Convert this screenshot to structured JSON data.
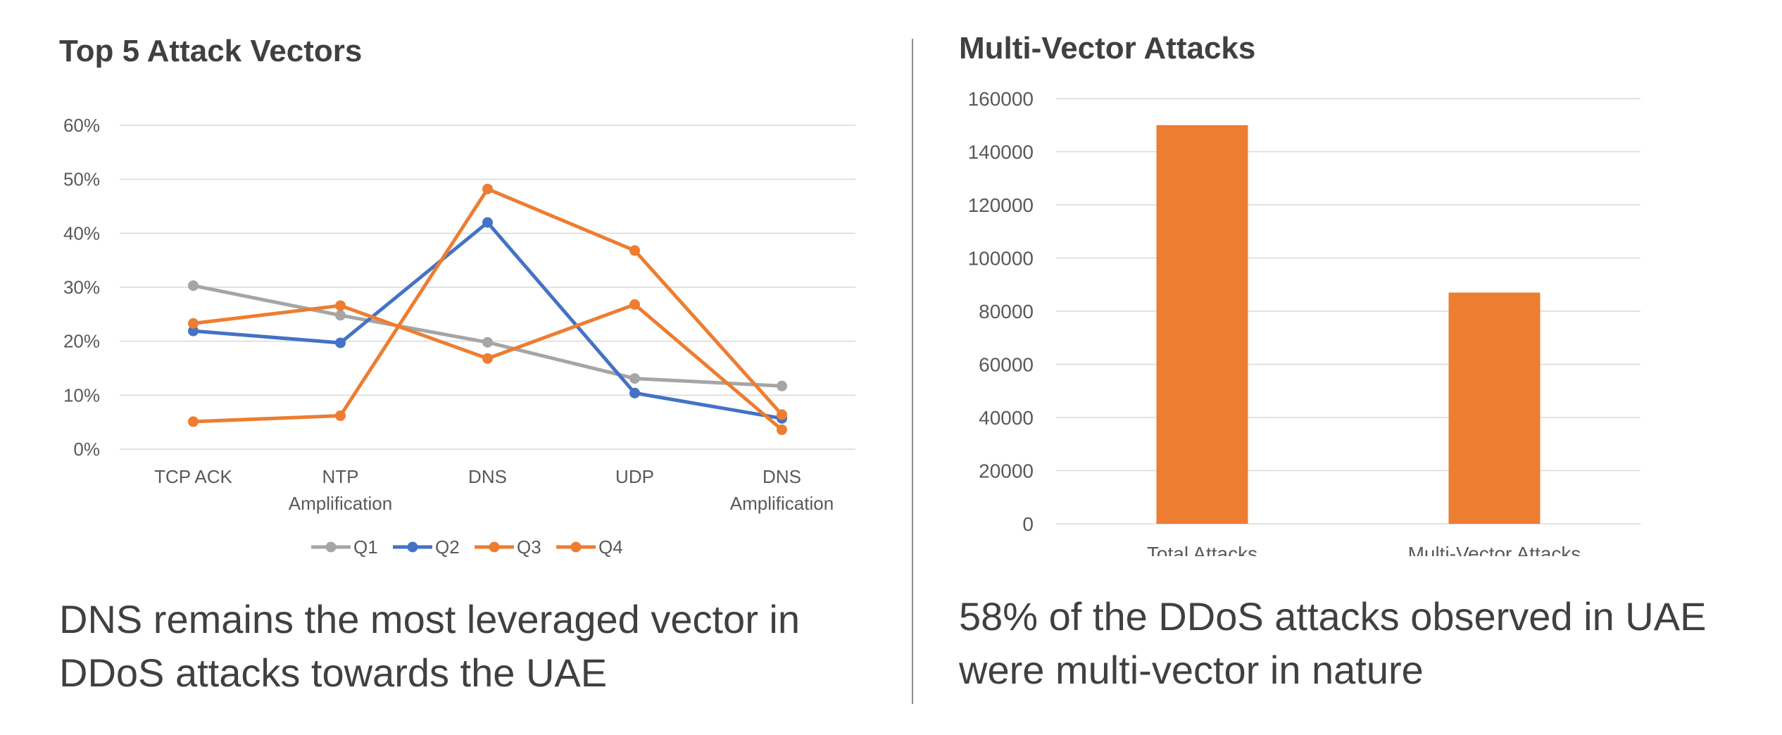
{
  "left": {
    "title": "Top 5 Attack Vectors",
    "caption_line1": "DNS remains the most leveraged vector in",
    "caption_line2": "DDoS attacks towards the UAE"
  },
  "right": {
    "title": "Multi-Vector Attacks",
    "caption_line1": "58% of the DDoS attacks observed in UAE",
    "caption_line2": "were multi-vector in nature"
  },
  "chart_data": [
    {
      "type": "line",
      "title": "Top 5 Attack Vectors",
      "categories": [
        [
          "TCP ACK"
        ],
        [
          "NTP",
          "Amplification"
        ],
        [
          "DNS"
        ],
        [
          "UDP"
        ],
        [
          "DNS",
          "Amplification"
        ]
      ],
      "ylim": [
        0,
        60
      ],
      "yticks": [
        "0%",
        "10%",
        "20%",
        "30%",
        "40%",
        "50%",
        "60%"
      ],
      "grid": true,
      "legend": "bottom",
      "series": [
        {
          "name": "Q1",
          "color": "#a5a5a5",
          "values": [
            30.3,
            24.8,
            19.8,
            13.1,
            11.7
          ]
        },
        {
          "name": "Q2",
          "color": "#4472c4",
          "values": [
            21.9,
            19.7,
            42.0,
            10.4,
            5.7
          ]
        },
        {
          "name": "Q3",
          "color": "#ed7d31",
          "values": [
            23.3,
            26.6,
            16.8,
            26.8,
            3.6
          ]
        },
        {
          "name": "Q4",
          "color": "#ed7d31",
          "values": [
            5.1,
            6.2,
            48.2,
            36.8,
            6.4
          ]
        }
      ]
    },
    {
      "type": "bar",
      "title": "Multi-Vector Attacks",
      "categories": [
        "Total Attacks",
        "Multi-Vector Attacks"
      ],
      "values": [
        150000,
        87000
      ],
      "ylim": [
        0,
        160000
      ],
      "yticks": [
        "0",
        "20000",
        "40000",
        "60000",
        "80000",
        "100000",
        "120000",
        "140000",
        "160000"
      ],
      "grid": true,
      "color": "#ed7d31"
    }
  ]
}
